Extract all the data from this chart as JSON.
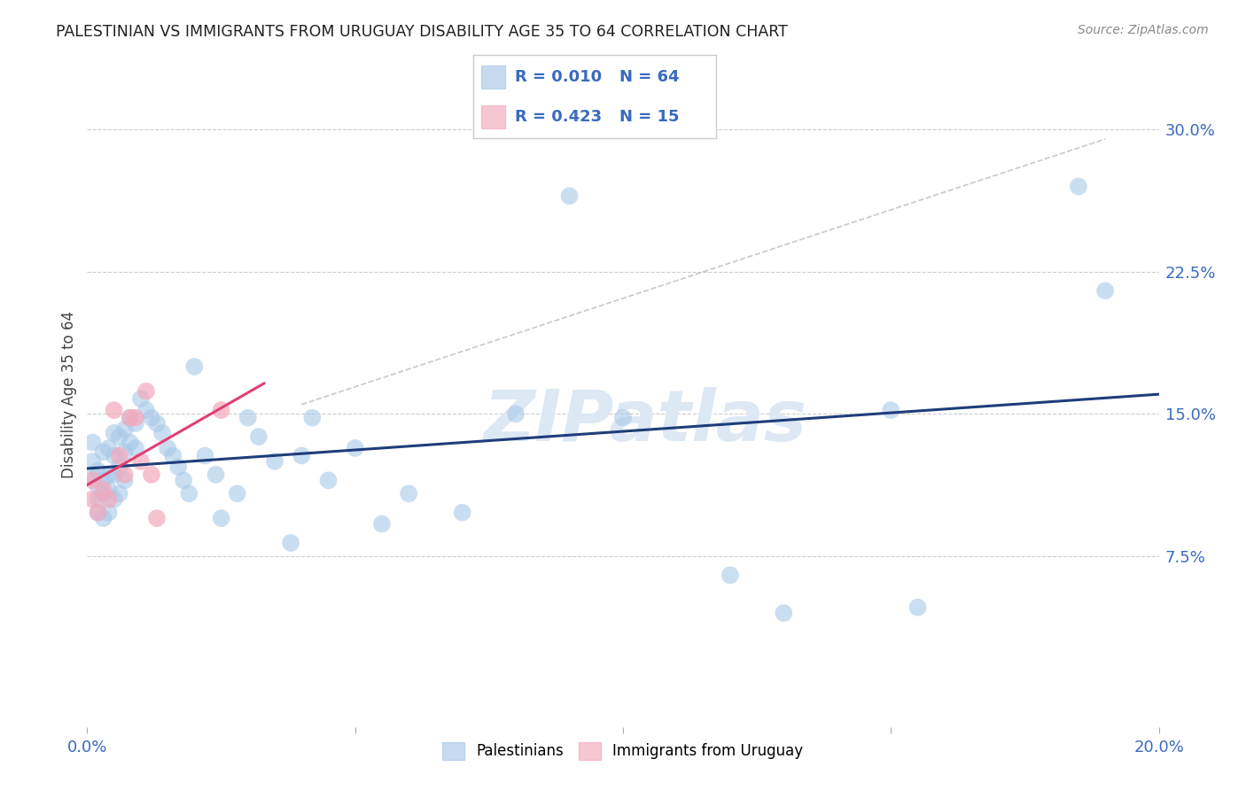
{
  "title": "PALESTINIAN VS IMMIGRANTS FROM URUGUAY DISABILITY AGE 35 TO 64 CORRELATION CHART",
  "source": "Source: ZipAtlas.com",
  "ylabel": "Disability Age 35 to 64",
  "xlim": [
    0.0,
    0.2
  ],
  "ylim": [
    -0.015,
    0.335
  ],
  "xticks": [
    0.0,
    0.05,
    0.1,
    0.15,
    0.2
  ],
  "xtick_labels": [
    "0.0%",
    "",
    "",
    "",
    "20.0%"
  ],
  "ytick_labels": [
    "7.5%",
    "15.0%",
    "22.5%",
    "30.0%"
  ],
  "yticks": [
    0.075,
    0.15,
    0.225,
    0.3
  ],
  "background_color": "#ffffff",
  "grid_color": "#cccccc",
  "legend1_R": "0.010",
  "legend1_N": "64",
  "legend2_R": "0.423",
  "legend2_N": "15",
  "blue_color": "#a8c8e8",
  "pink_color": "#f4a8bc",
  "line_blue": "#1f3d7a",
  "line_pink": "#e04070",
  "watermark_color": "#dde8f5",
  "palestinians_x": [
    0.001,
    0.001,
    0.001,
    0.002,
    0.002,
    0.002,
    0.002,
    0.003,
    0.003,
    0.003,
    0.003,
    0.004,
    0.004,
    0.004,
    0.004,
    0.005,
    0.005,
    0.005,
    0.005,
    0.006,
    0.006,
    0.006,
    0.007,
    0.007,
    0.007,
    0.008,
    0.008,
    0.009,
    0.009,
    0.01,
    0.011,
    0.012,
    0.013,
    0.014,
    0.015,
    0.016,
    0.017,
    0.018,
    0.019,
    0.02,
    0.022,
    0.024,
    0.025,
    0.028,
    0.03,
    0.032,
    0.035,
    0.038,
    0.04,
    0.042,
    0.045,
    0.05,
    0.055,
    0.06,
    0.07,
    0.08,
    0.09,
    0.1,
    0.12,
    0.13,
    0.15,
    0.155,
    0.185,
    0.19
  ],
  "palestinians_y": [
    0.125,
    0.135,
    0.118,
    0.12,
    0.112,
    0.105,
    0.098,
    0.13,
    0.115,
    0.108,
    0.095,
    0.132,
    0.118,
    0.11,
    0.098,
    0.14,
    0.128,
    0.118,
    0.105,
    0.138,
    0.122,
    0.108,
    0.142,
    0.13,
    0.115,
    0.148,
    0.135,
    0.145,
    0.132,
    0.158,
    0.152,
    0.148,
    0.145,
    0.14,
    0.132,
    0.128,
    0.122,
    0.115,
    0.108,
    0.175,
    0.128,
    0.118,
    0.095,
    0.108,
    0.148,
    0.138,
    0.125,
    0.082,
    0.128,
    0.148,
    0.115,
    0.132,
    0.092,
    0.108,
    0.098,
    0.15,
    0.265,
    0.148,
    0.065,
    0.045,
    0.152,
    0.048,
    0.27,
    0.215
  ],
  "uruguay_x": [
    0.001,
    0.001,
    0.002,
    0.003,
    0.004,
    0.005,
    0.006,
    0.007,
    0.008,
    0.009,
    0.01,
    0.011,
    0.012,
    0.013,
    0.025
  ],
  "uruguay_y": [
    0.105,
    0.115,
    0.098,
    0.11,
    0.105,
    0.152,
    0.128,
    0.118,
    0.148,
    0.148,
    0.125,
    0.162,
    0.118,
    0.095,
    0.152
  ],
  "grey_line_x": [
    0.04,
    0.19
  ],
  "grey_line_y": [
    0.155,
    0.295
  ]
}
